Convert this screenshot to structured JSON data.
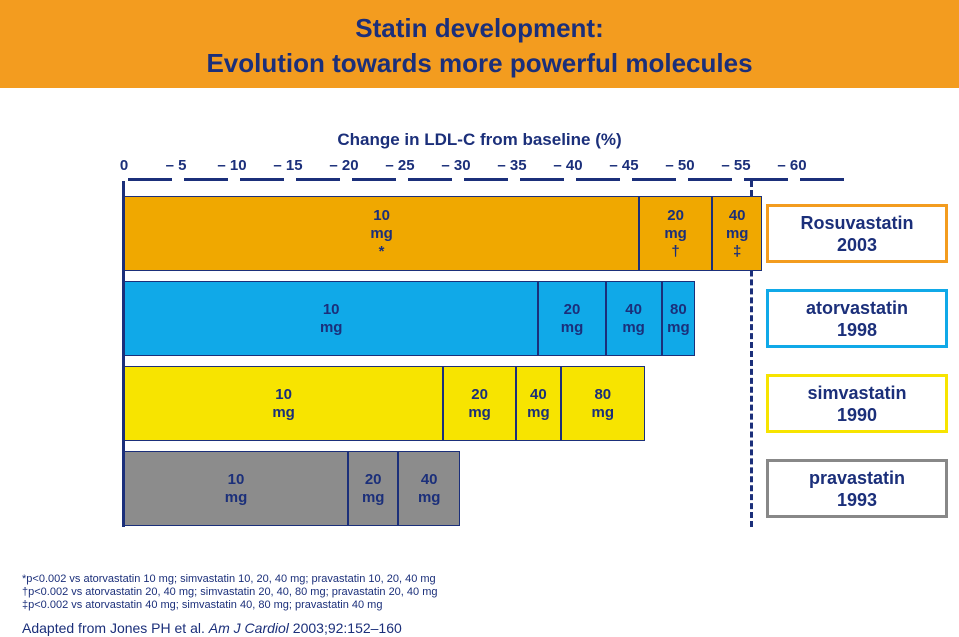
{
  "title_line1": "Statin development:",
  "title_line2": "Evolution towards more powerful molecules",
  "colors": {
    "banner": "#f39c1f",
    "text": "#1b2f7a",
    "rosuvastatin": "#f0a800",
    "atorvastatin": "#10a9e8",
    "simvastatin": "#f7e400",
    "pravastatin": "#8c8c8c"
  },
  "chart_data": {
    "type": "bar",
    "orientation": "horizontal",
    "title": "Change in LDL-C from baseline (%)",
    "x_ticks": [
      "0",
      "5",
      "10",
      "15",
      "20",
      "25",
      "30",
      "35",
      "40",
      "45",
      "50",
      "55",
      "60"
    ],
    "xlim": [
      0,
      63
    ],
    "grid": false,
    "reference_line": 56,
    "series": [
      {
        "drug": "Rosuvastatin",
        "year": "2003",
        "segments": [
          {
            "from": 0,
            "to": 46,
            "label": "10\nmg\n*"
          },
          {
            "from": 46,
            "to": 52.5,
            "label": "20\nmg\n†"
          },
          {
            "from": 52.5,
            "to": 57,
            "label": "40\nmg\n‡"
          }
        ]
      },
      {
        "drug": "atorvastatin",
        "year": "1998",
        "segments": [
          {
            "from": 0,
            "to": 37,
            "label": "10\nmg"
          },
          {
            "from": 37,
            "to": 43,
            "label": "20\nmg"
          },
          {
            "from": 43,
            "to": 48,
            "label": "40\nmg"
          },
          {
            "from": 48,
            "to": 51,
            "label": "80\nmg"
          }
        ]
      },
      {
        "drug": "simvastatin",
        "year": "1990",
        "segments": [
          {
            "from": 0,
            "to": 28.5,
            "label": "10\nmg"
          },
          {
            "from": 28.5,
            "to": 35,
            "label": "20\nmg"
          },
          {
            "from": 35,
            "to": 39,
            "label": "40\nmg"
          },
          {
            "from": 39,
            "to": 46.5,
            "label": "80\nmg"
          }
        ]
      },
      {
        "drug": "pravastatin",
        "year": "1993",
        "segments": [
          {
            "from": 0,
            "to": 20,
            "label": "10\nmg"
          },
          {
            "from": 20,
            "to": 24.5,
            "label": "20\nmg"
          },
          {
            "from": 24.5,
            "to": 30,
            "label": "40\nmg"
          }
        ]
      }
    ]
  },
  "footnotes": [
    "*p<0.002 vs atorvastatin 10 mg; simvastatin 10, 20, 40 mg; pravastatin 10, 20, 40 mg",
    "†p<0.002 vs atorvastatin 20, 40 mg; simvastatin 20, 40, 80 mg; pravastatin 20, 40 mg",
    "‡p<0.002 vs atorvastatin 40 mg; simvastatin 40, 80 mg; pravastatin 40 mg"
  ],
  "source": {
    "prefix": "Adapted from Jones PH et al. ",
    "journal": "Am J Cardiol",
    "suffix": " 2003;92:152–160"
  }
}
